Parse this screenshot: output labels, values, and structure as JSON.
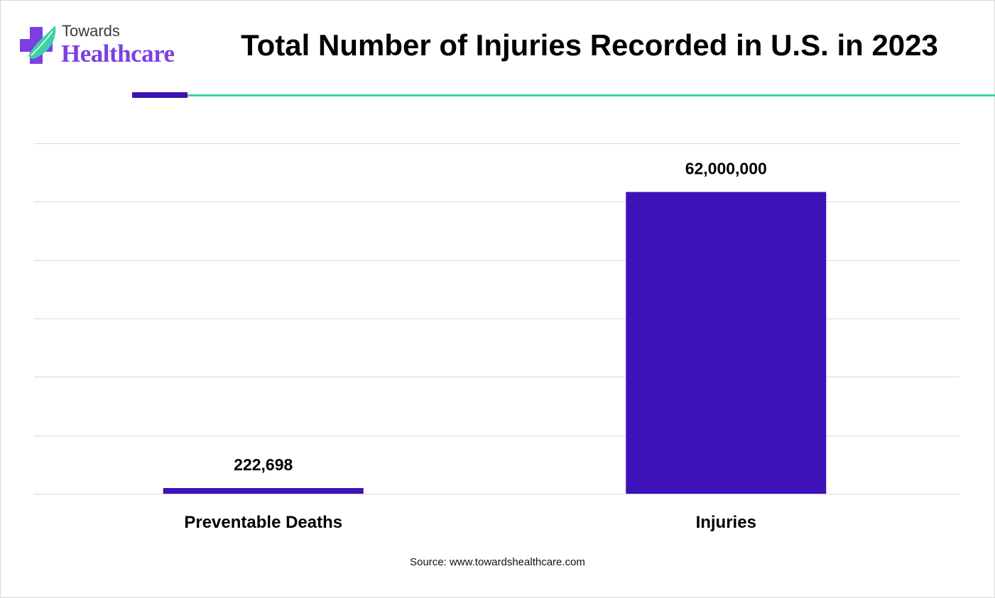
{
  "logo": {
    "line1": "Towards",
    "line2": "Healthcare"
  },
  "title": "Total Number of Injuries Recorded in U.S. in 2023",
  "source": "Source: www.towardshealthcare.com",
  "colors": {
    "bar": "#3d12b8",
    "accent": "#3ed1a3",
    "brand": "#7b3fe4",
    "grid": "#d9d9d9"
  },
  "chart_data": {
    "type": "bar",
    "categories": [
      "Preventable Deaths",
      "Injuries"
    ],
    "values": [
      222698,
      62000000
    ],
    "value_labels": [
      "222,698",
      "62,000,000"
    ],
    "title": "Total Number of Injuries Recorded in U.S. in 2023",
    "xlabel": "",
    "ylabel": "",
    "ylim": [
      0,
      72000000
    ],
    "grid": true,
    "gridlines": [
      0,
      12000000,
      24000000,
      36000000,
      48000000,
      60000000,
      72000000
    ],
    "legend": "none",
    "y_axis_labels_visible": false
  }
}
